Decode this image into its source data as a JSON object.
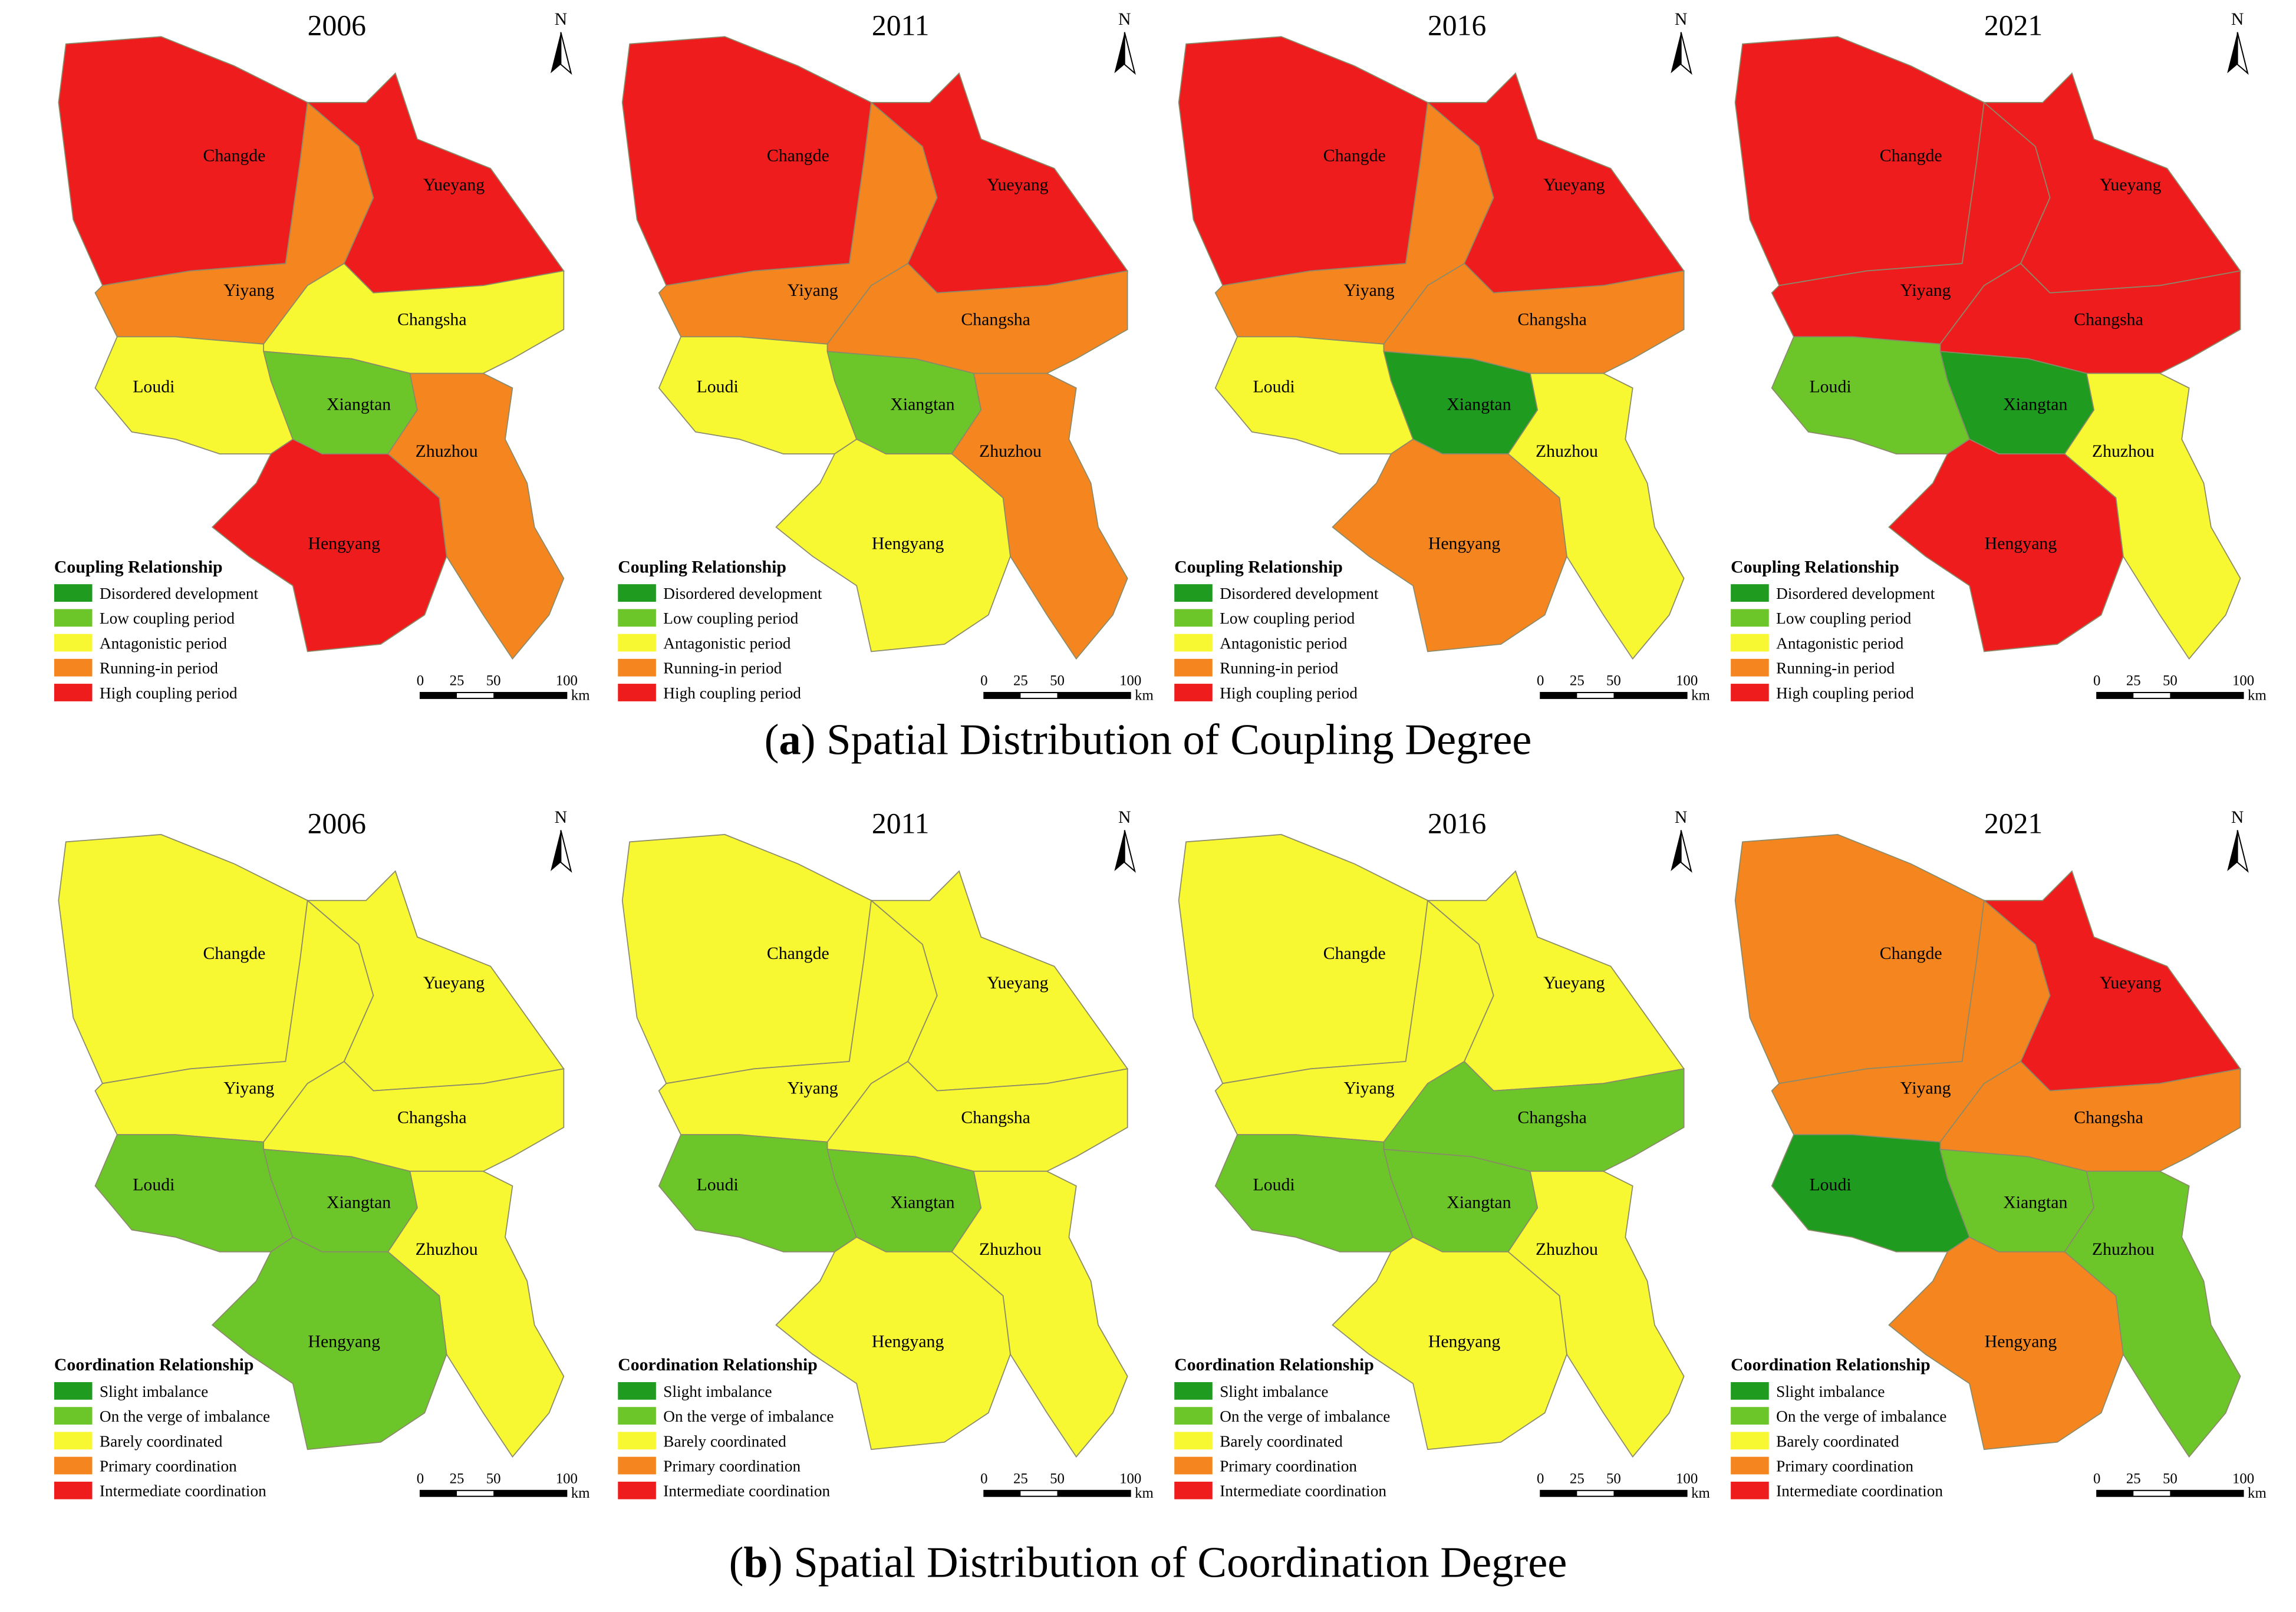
{
  "north": "N",
  "scale_labels": [
    "0",
    "25",
    "50",
    "100"
  ],
  "scale_unit": "km",
  "figures": [
    {
      "caption_open": "(",
      "caption_label": "a",
      "caption_text": ") Spatial Distribution of Coupling Degree",
      "legend": {
        "title": "Coupling Relationship",
        "items": [
          {
            "label": "Disordered development",
            "color": "#1f9b1f"
          },
          {
            "label": "Low coupling period",
            "color": "#6cc62a"
          },
          {
            "label": "Antagonistic period",
            "color": "#f7f732"
          },
          {
            "label": "Running-in period",
            "color": "#f5861f"
          },
          {
            "label": "High coupling period",
            "color": "#ee1c1c"
          }
        ]
      },
      "panels": [
        {
          "year": "2006",
          "regions": [
            {
              "name": "Changde",
              "class": 4
            },
            {
              "name": "Yiyang",
              "class": 3
            },
            {
              "name": "Yueyang",
              "class": 4
            },
            {
              "name": "Changsha",
              "class": 2
            },
            {
              "name": "Loudi",
              "class": 2
            },
            {
              "name": "Xiangtan",
              "class": 1
            },
            {
              "name": "Zhuzhou",
              "class": 3
            },
            {
              "name": "Hengyang",
              "class": 4
            }
          ]
        },
        {
          "year": "2011",
          "regions": [
            {
              "name": "Changde",
              "class": 4
            },
            {
              "name": "Yiyang",
              "class": 3
            },
            {
              "name": "Yueyang",
              "class": 4
            },
            {
              "name": "Changsha",
              "class": 3
            },
            {
              "name": "Loudi",
              "class": 2
            },
            {
              "name": "Xiangtan",
              "class": 1
            },
            {
              "name": "Zhuzhou",
              "class": 3
            },
            {
              "name": "Hengyang",
              "class": 2
            }
          ]
        },
        {
          "year": "2016",
          "regions": [
            {
              "name": "Changde",
              "class": 4
            },
            {
              "name": "Yiyang",
              "class": 3
            },
            {
              "name": "Yueyang",
              "class": 4
            },
            {
              "name": "Changsha",
              "class": 3
            },
            {
              "name": "Loudi",
              "class": 2
            },
            {
              "name": "Xiangtan",
              "class": 0
            },
            {
              "name": "Zhuzhou",
              "class": 2
            },
            {
              "name": "Hengyang",
              "class": 3
            }
          ]
        },
        {
          "year": "2021",
          "regions": [
            {
              "name": "Changde",
              "class": 4
            },
            {
              "name": "Yiyang",
              "class": 4
            },
            {
              "name": "Yueyang",
              "class": 4
            },
            {
              "name": "Changsha",
              "class": 4
            },
            {
              "name": "Loudi",
              "class": 1
            },
            {
              "name": "Xiangtan",
              "class": 0
            },
            {
              "name": "Zhuzhou",
              "class": 2
            },
            {
              "name": "Hengyang",
              "class": 4
            }
          ]
        }
      ]
    },
    {
      "caption_open": "(",
      "caption_label": "b",
      "caption_text": ") Spatial Distribution of Coordination Degree",
      "legend": {
        "title": "Coordination Relationship",
        "items": [
          {
            "label": "Slight imbalance",
            "color": "#1f9b1f"
          },
          {
            "label": "On the verge of imbalance",
            "color": "#6cc62a"
          },
          {
            "label": "Barely coordinated",
            "color": "#f7f732"
          },
          {
            "label": "Primary coordination",
            "color": "#f5861f"
          },
          {
            "label": "Intermediate coordination",
            "color": "#ee1c1c"
          }
        ]
      },
      "panels": [
        {
          "year": "2006",
          "regions": [
            {
              "name": "Changde",
              "class": 2
            },
            {
              "name": "Yiyang",
              "class": 2
            },
            {
              "name": "Yueyang",
              "class": 2
            },
            {
              "name": "Changsha",
              "class": 2
            },
            {
              "name": "Loudi",
              "class": 1
            },
            {
              "name": "Xiangtan",
              "class": 1
            },
            {
              "name": "Zhuzhou",
              "class": 2
            },
            {
              "name": "Hengyang",
              "class": 1
            }
          ]
        },
        {
          "year": "2011",
          "regions": [
            {
              "name": "Changde",
              "class": 2
            },
            {
              "name": "Yiyang",
              "class": 2
            },
            {
              "name": "Yueyang",
              "class": 2
            },
            {
              "name": "Changsha",
              "class": 2
            },
            {
              "name": "Loudi",
              "class": 1
            },
            {
              "name": "Xiangtan",
              "class": 1
            },
            {
              "name": "Zhuzhou",
              "class": 2
            },
            {
              "name": "Hengyang",
              "class": 2
            }
          ]
        },
        {
          "year": "2016",
          "regions": [
            {
              "name": "Changde",
              "class": 2
            },
            {
              "name": "Yiyang",
              "class": 2
            },
            {
              "name": "Yueyang",
              "class": 2
            },
            {
              "name": "Changsha",
              "class": 1
            },
            {
              "name": "Loudi",
              "class": 1
            },
            {
              "name": "Xiangtan",
              "class": 1
            },
            {
              "name": "Zhuzhou",
              "class": 2
            },
            {
              "name": "Hengyang",
              "class": 2
            }
          ]
        },
        {
          "year": "2021",
          "regions": [
            {
              "name": "Changde",
              "class": 3
            },
            {
              "name": "Yiyang",
              "class": 3
            },
            {
              "name": "Yueyang",
              "class": 4
            },
            {
              "name": "Changsha",
              "class": 3
            },
            {
              "name": "Loudi",
              "class": 0
            },
            {
              "name": "Xiangtan",
              "class": 1
            },
            {
              "name": "Zhuzhou",
              "class": 1
            },
            {
              "name": "Hengyang",
              "class": 3
            }
          ]
        }
      ]
    }
  ]
}
